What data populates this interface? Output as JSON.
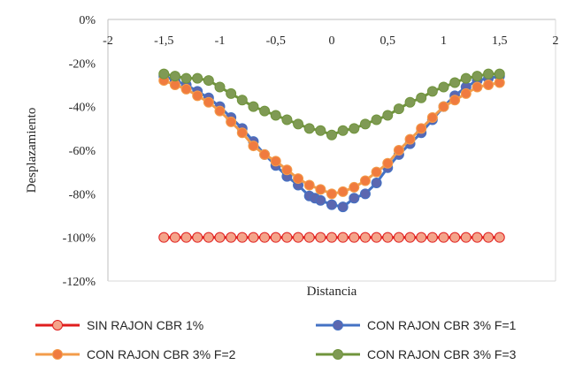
{
  "chart_data": {
    "type": "line",
    "xlabel": "Distancia",
    "ylabel": "Desplazamiento",
    "xlim": [
      -2,
      2
    ],
    "ylim": [
      -120,
      0
    ],
    "xticks": [
      "-2",
      "-1,5",
      "-1",
      "-0,5",
      "0",
      "0,5",
      "1",
      "1,5",
      "2"
    ],
    "yticks": [
      "0%",
      "-20%",
      "-40%",
      "-60%",
      "-80%",
      "-100%",
      "-120%"
    ],
    "x_axis_position": "top",
    "grid": false,
    "legend_position": "bottom",
    "series": [
      {
        "name": "SIN RAJON CBR  1%",
        "color": "#e01e1e",
        "marker_fill": "#f4a48a",
        "x": [
          -1.5,
          -1.4,
          -1.3,
          -1.2,
          -1.1,
          -1.0,
          -0.9,
          -0.8,
          -0.7,
          -0.6,
          -0.5,
          -0.4,
          -0.3,
          -0.2,
          -0.1,
          0.0,
          0.1,
          0.2,
          0.3,
          0.4,
          0.5,
          0.6,
          0.7,
          0.8,
          0.9,
          1.0,
          1.1,
          1.2,
          1.3,
          1.4,
          1.5
        ],
        "y": [
          -100,
          -100,
          -100,
          -100,
          -100,
          -100,
          -100,
          -100,
          -100,
          -100,
          -100,
          -100,
          -100,
          -100,
          -100,
          -100,
          -100,
          -100,
          -100,
          -100,
          -100,
          -100,
          -100,
          -100,
          -100,
          -100,
          -100,
          -100,
          -100,
          -100,
          -100
        ]
      },
      {
        "name": "CON RAJON CBR 3% F=1",
        "color": "#4472c4",
        "marker_fill": "#5b67b0",
        "x": [
          -1.5,
          -1.4,
          -1.3,
          -1.2,
          -1.1,
          -1.0,
          -0.9,
          -0.8,
          -0.7,
          -0.6,
          -0.5,
          -0.4,
          -0.3,
          -0.2,
          -0.15,
          -0.1,
          0.0,
          0.1,
          0.2,
          0.3,
          0.4,
          0.5,
          0.6,
          0.7,
          0.8,
          0.9,
          1.0,
          1.1,
          1.2,
          1.3,
          1.4,
          1.5
        ],
        "y": [
          -26,
          -28,
          -30,
          -33,
          -36,
          -40,
          -45,
          -50,
          -56,
          -62,
          -67,
          -72,
          -76,
          -81,
          -82,
          -83,
          -85,
          -86,
          -82,
          -80,
          -75,
          -68,
          -62,
          -57,
          -52,
          -46,
          -40,
          -35,
          -31,
          -28,
          -27,
          -26
        ]
      },
      {
        "name": "CON RAJON CBR 3% F=2",
        "color": "#f39c4a",
        "marker_fill": "#f07b3f",
        "x": [
          -1.5,
          -1.4,
          -1.3,
          -1.2,
          -1.1,
          -1.0,
          -0.9,
          -0.8,
          -0.7,
          -0.6,
          -0.5,
          -0.4,
          -0.3,
          -0.2,
          -0.1,
          0.0,
          0.1,
          0.2,
          0.3,
          0.4,
          0.5,
          0.6,
          0.7,
          0.8,
          0.9,
          1.0,
          1.1,
          1.2,
          1.3,
          1.4,
          1.5
        ],
        "y": [
          -28,
          -30,
          -32,
          -35,
          -38,
          -42,
          -47,
          -52,
          -58,
          -62,
          -65,
          -69,
          -73,
          -76,
          -78,
          -80,
          -79,
          -77,
          -74,
          -70,
          -66,
          -60,
          -55,
          -50,
          -45,
          -40,
          -37,
          -34,
          -31,
          -30,
          -29
        ]
      },
      {
        "name": "CON RAJON CBR 3% F=3",
        "color": "#70943c",
        "marker_fill": "#7f9a54",
        "x": [
          -1.5,
          -1.4,
          -1.3,
          -1.2,
          -1.1,
          -1.0,
          -0.9,
          -0.8,
          -0.7,
          -0.6,
          -0.5,
          -0.4,
          -0.3,
          -0.2,
          -0.1,
          0.0,
          0.1,
          0.2,
          0.3,
          0.4,
          0.5,
          0.6,
          0.7,
          0.8,
          0.9,
          1.0,
          1.1,
          1.2,
          1.3,
          1.4,
          1.5
        ],
        "y": [
          -25,
          -26,
          -27,
          -27,
          -28,
          -31,
          -34,
          -37,
          -40,
          -42,
          -44,
          -46,
          -48,
          -50,
          -51,
          -53,
          -51,
          -50,
          -48,
          -46,
          -44,
          -41,
          -38,
          -36,
          -33,
          -31,
          -29,
          -27,
          -26,
          -25,
          -25
        ]
      }
    ]
  }
}
